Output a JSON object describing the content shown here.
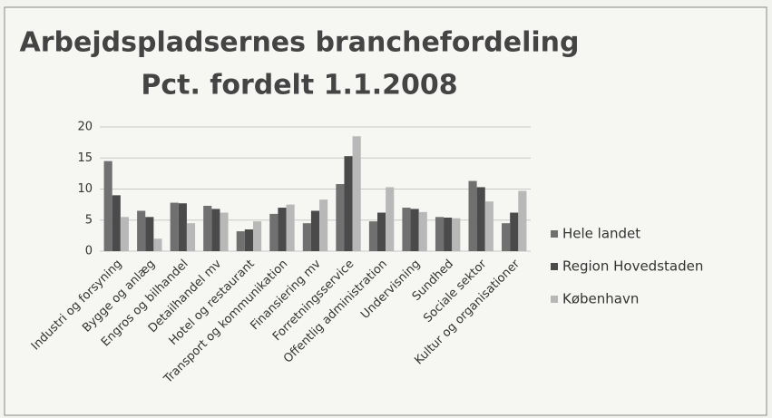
{
  "chart_data": {
    "type": "bar",
    "title": [
      "Arbejdspladsernes branchefordeling",
      "Pct. fordelt 1.1.2008"
    ],
    "categories": [
      "Industri og forsyning",
      "Bygge og anlæg",
      "Engros og bilhandel",
      "Detailhandel mv",
      "Hotel og restaurant",
      "Transport og kommunikation",
      "Finansiering mv",
      "Forretningsservice",
      "Offentlig administration",
      "Undervisning",
      "Sundhed",
      "Sociale sektor",
      "Kultur og organisationer"
    ],
    "series": [
      {
        "name": "Hele landet",
        "color": "#707070",
        "values": [
          14.5,
          6.5,
          7.8,
          7.3,
          3.2,
          6,
          4.5,
          10.8,
          4.8,
          7,
          5.5,
          11.3,
          4.5
        ]
      },
      {
        "name": "Region Hovedstaden",
        "color": "#4a4a4a",
        "values": [
          9,
          5.5,
          7.7,
          6.8,
          3.5,
          7,
          6.5,
          15.3,
          6.2,
          6.8,
          5.4,
          10.3,
          6.2
        ]
      },
      {
        "name": "København",
        "color": "#b8b8b8",
        "values": [
          5.5,
          2,
          4.5,
          6.2,
          4.8,
          7.5,
          8.3,
          18.5,
          10.3,
          6.3,
          5.3,
          8,
          9.7
        ]
      }
    ],
    "ylim": [
      0,
      20
    ],
    "yticks": [
      0,
      5,
      10,
      15,
      20
    ],
    "grid": true,
    "legend": "right"
  }
}
